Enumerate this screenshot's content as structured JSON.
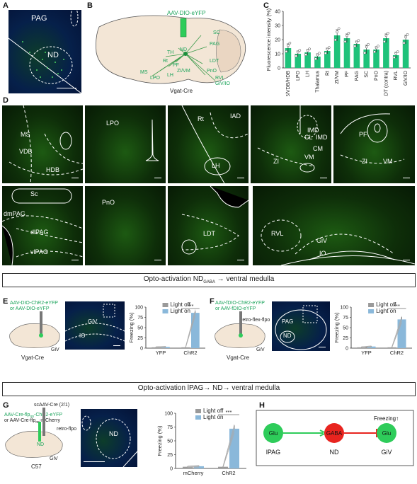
{
  "labels": {
    "A": "A",
    "B": "B",
    "C": "C",
    "D": "D",
    "E": "E",
    "F": "F",
    "G": "G",
    "H": "H"
  },
  "panelA": {
    "regions": [
      "PAG",
      "ND"
    ]
  },
  "panelB": {
    "virus": "AAV-DIO-eYFP",
    "mouse": "Vgat-Cre",
    "regions": [
      "SC",
      "PAG",
      "ND",
      "LDT",
      "PnO",
      "RVL",
      "GiV/IO",
      "TH",
      "Rt",
      "PF",
      "ZI/VM",
      "LH",
      "MS",
      "LPO"
    ]
  },
  "panelC": {
    "title": "",
    "ylabel": "Fluorescence intensity (%)"
  },
  "chart_data": [
    {
      "type": "bar",
      "title": "",
      "ylabel": "Fluorescence intensity (%)",
      "ylim": [
        0,
        40
      ],
      "categories": [
        "MS/VDB/HDB",
        "LPO",
        "LH",
        "Thalamus",
        "Rt",
        "ZI/VM",
        "PF",
        "PAG",
        "SC",
        "PnO",
        "LDT (contra)",
        "RVL",
        "GiV/IO"
      ],
      "values": [
        14,
        10,
        11,
        8,
        12,
        23,
        21,
        17,
        13,
        13,
        21,
        9,
        20
      ],
      "errors": [
        3,
        2,
        2,
        2,
        2,
        4,
        3,
        2,
        3,
        2,
        3,
        2,
        3
      ],
      "yticks": [
        0,
        10,
        20,
        30,
        40
      ],
      "color": "#1ec27a"
    },
    {
      "type": "bar",
      "title": "",
      "ylabel": "Freezing (%)",
      "ylim": [
        0,
        100
      ],
      "categories": [
        "YFP",
        "ChR2"
      ],
      "series": [
        {
          "name": "Light off",
          "values": [
            2,
            2
          ]
        },
        {
          "name": "Light on",
          "values": [
            3,
            86
          ]
        }
      ],
      "errors": [
        [
          1,
          1
        ],
        [
          1,
          5
        ]
      ],
      "significance": "***",
      "yticks": [
        0,
        25,
        50,
        75,
        100
      ]
    },
    {
      "type": "bar",
      "title": "",
      "ylabel": "Freezing (%)",
      "ylim": [
        0,
        100
      ],
      "categories": [
        "YFP",
        "ChR2"
      ],
      "series": [
        {
          "name": "Light off",
          "values": [
            2,
            2
          ]
        },
        {
          "name": "Light on",
          "values": [
            4,
            70
          ]
        }
      ],
      "errors": [
        [
          1,
          1
        ],
        [
          1,
          6
        ]
      ],
      "significance": "***",
      "yticks": [
        0,
        25,
        50,
        75,
        100
      ]
    },
    {
      "type": "bar",
      "title": "",
      "ylabel": "Freezing (%)",
      "ylim": [
        0,
        100
      ],
      "categories": [
        "mCherry",
        "ChR2"
      ],
      "series": [
        {
          "name": "Light off",
          "values": [
            3,
            3
          ]
        },
        {
          "name": "Light on",
          "values": [
            4,
            72
          ]
        }
      ],
      "errors": [
        [
          1,
          1
        ],
        [
          1,
          6
        ]
      ],
      "significance": "***",
      "yticks": [
        0,
        25,
        50,
        75,
        100
      ]
    }
  ],
  "panelD": {
    "tiles": [
      {
        "labels": [
          "MS",
          "VDB",
          "HDB"
        ]
      },
      {
        "labels": [
          "LPO"
        ]
      },
      {
        "labels": [
          "Rt",
          "IAD",
          "LH"
        ]
      },
      {
        "labels": [
          "IMD",
          "CL",
          "IMD",
          "CM",
          "VM",
          "ZI"
        ]
      },
      {
        "labels": [
          "PF",
          "ZI",
          "VM"
        ]
      },
      {
        "labels": [
          "Sc",
          "dmPAG",
          "dlPAG",
          "vlPAG"
        ]
      },
      {
        "labels": [
          "PnO"
        ]
      },
      {
        "labels": [
          "LDT"
        ]
      },
      {
        "labels": [
          "RVL",
          "GiV",
          "IO"
        ]
      }
    ]
  },
  "section1": {
    "prefix": "Opto-activation ND",
    "sub": "GABA",
    "suffix": "→ ventral medulla"
  },
  "section2": {
    "text": "Opto-activation lPAG→ ND→ ventral medulla"
  },
  "panelE": {
    "virus1": "AAV-DIO-ChR2-eYFP",
    "virus2": "or AAV-DIO-eYFP",
    "mouse": "Vgat-Cre",
    "site": "GiV",
    "micro": [
      "GiV",
      "IO"
    ]
  },
  "panelF": {
    "virus1": "AAV-fDIO-ChR2-eYFP",
    "virus2": "or AAV-fDIO-eYFP",
    "retro": "retro-flex-flpo",
    "mouse": "Vgat-Cre",
    "site": "GiV",
    "micro": [
      "PAG",
      "ND"
    ]
  },
  "panelG": {
    "sc": "scAAV-Cre (2/1)",
    "virus1": "AAV-Cre-flp",
    "virus1sub": "on",
    "virus1b": "-ChR2-eYFP",
    "virus2": "or AAV-Cre-flp",
    "virus2sub": "on",
    "virus2b": "-mCherry",
    "retro": "retro-flpo",
    "mouse": "C57",
    "site": "GiV",
    "nd": "ND",
    "micro": [
      "ND"
    ]
  },
  "panelH": {
    "nodes": [
      "Glu",
      "GABA",
      "Glu"
    ],
    "regions": [
      "lPAG",
      "ND",
      "GiV"
    ],
    "output": "Freezing",
    "arrow": "↑"
  },
  "legend": {
    "off": "Light off",
    "on": "Light on"
  },
  "colors": {
    "green": "#2ecc5a",
    "red": "#e8241f",
    "bar_green": "#1ec27a",
    "light_on": "#8ab8da",
    "light_off": "#9a9a9a"
  }
}
